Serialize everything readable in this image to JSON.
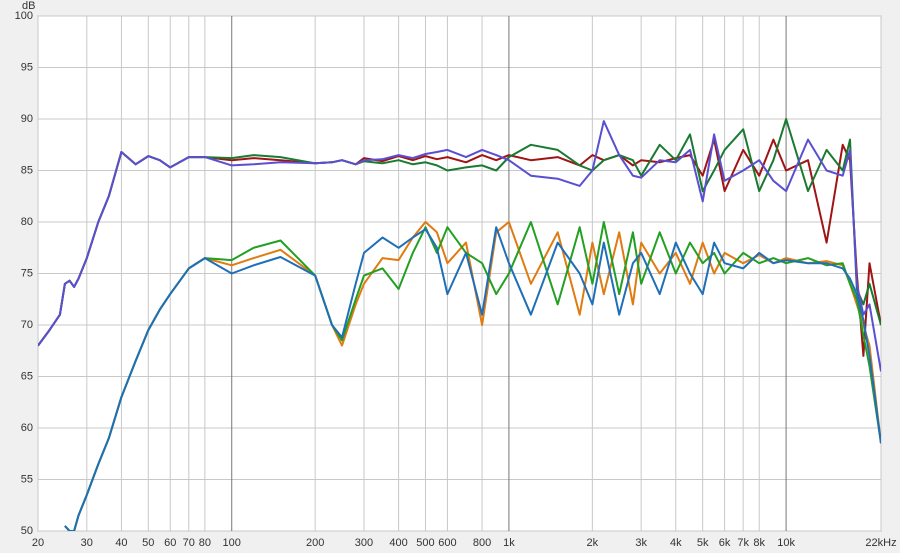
{
  "chart_data": {
    "type": "line",
    "ylabel": "dB",
    "xscale": "log",
    "grid": true,
    "x": [
      20,
      22,
      24,
      25,
      26,
      27,
      28,
      30,
      33,
      36,
      40,
      45,
      50,
      55,
      60,
      70,
      80,
      100,
      120,
      150,
      200,
      230,
      250,
      280,
      300,
      350,
      400,
      450,
      500,
      550,
      600,
      700,
      800,
      900,
      1000,
      1200,
      1500,
      1800,
      2000,
      2200,
      2500,
      2800,
      3000,
      3500,
      4000,
      4500,
      5000,
      5500,
      6000,
      7000,
      8000,
      9000,
      10000,
      12000,
      14000,
      16000,
      17000,
      18000,
      19000,
      20000,
      22000
    ],
    "series": [
      {
        "color": "#a01414",
        "values": [
          68,
          69.5,
          71,
          74,
          74.3,
          73.7,
          74.5,
          76.5,
          80,
          82.5,
          86.8,
          85.6,
          86.4,
          86,
          85.3,
          86.3,
          86.3,
          86,
          86.2,
          86,
          85.7,
          85.8,
          86,
          85.6,
          86.2,
          85.9,
          86.4,
          86,
          86.4,
          86.1,
          86.3,
          85.8,
          86.5,
          86,
          86.5,
          86,
          86.3,
          85.5,
          86.5,
          86,
          86.5,
          85.5,
          86,
          85.8,
          86.2,
          86.5,
          84.5,
          88,
          83,
          87,
          84.5,
          88,
          85,
          86,
          78,
          87.5,
          86,
          75,
          67,
          76,
          70
        ]
      },
      {
        "color": "#1a7a32",
        "values": [
          68,
          69.5,
          71,
          74,
          74.3,
          73.7,
          74.5,
          76.5,
          80,
          82.5,
          86.8,
          85.6,
          86.4,
          86,
          85.3,
          86.3,
          86.3,
          86.2,
          86.5,
          86.3,
          85.7,
          85.8,
          86,
          85.6,
          85.9,
          85.7,
          86,
          85.6,
          85.8,
          85.5,
          85,
          85.3,
          85.5,
          85,
          86.3,
          87.5,
          87,
          85.5,
          85,
          86,
          86.5,
          86,
          84.5,
          87.5,
          86,
          88.5,
          83,
          85,
          87,
          89,
          83,
          86,
          90,
          83,
          87,
          85,
          88,
          73.5,
          72,
          74,
          70
        ]
      },
      {
        "color": "#5a4fcf",
        "values": [
          68,
          69.5,
          71,
          74,
          74.3,
          73.7,
          74.5,
          76.5,
          80,
          82.5,
          86.8,
          85.6,
          86.4,
          86,
          85.3,
          86.3,
          86.3,
          85.5,
          85.6,
          85.8,
          85.7,
          85.8,
          86,
          85.6,
          86,
          86.1,
          86.5,
          86.2,
          86.6,
          86.8,
          87,
          86.3,
          87,
          86.5,
          86,
          84.5,
          84.2,
          83.5,
          85,
          89.8,
          86.5,
          84.5,
          84.3,
          86,
          85.8,
          87,
          82,
          88.5,
          84,
          85,
          86,
          84,
          83,
          88,
          85,
          84.5,
          87,
          74,
          71,
          72,
          65.5
        ]
      },
      {
        "color": "#e07b12",
        "values": [
          null,
          null,
          null,
          50.5,
          50,
          50,
          51.5,
          53.5,
          56.5,
          59,
          63,
          66.5,
          69.5,
          71.5,
          73,
          75.5,
          76.5,
          75.8,
          76.5,
          77.3,
          74.8,
          70,
          68,
          72,
          74,
          76.5,
          76.3,
          78.5,
          80,
          79,
          76,
          78,
          70,
          79,
          80,
          74,
          79,
          71,
          78,
          73,
          79,
          72,
          78,
          75,
          77,
          74,
          78,
          75,
          77,
          76,
          76.8,
          76,
          76.5,
          76,
          76.2,
          75.8,
          74,
          72,
          70,
          68,
          58.5
        ]
      },
      {
        "color": "#22a022",
        "values": [
          null,
          null,
          null,
          50.5,
          50,
          50,
          51.5,
          53.5,
          56.5,
          59,
          63,
          66.5,
          69.5,
          71.5,
          73,
          75.5,
          76.5,
          76.3,
          77.5,
          78.2,
          74.8,
          70,
          68.5,
          72.5,
          74.8,
          75.5,
          73.5,
          77,
          79.5,
          77,
          79.5,
          77,
          76,
          73,
          75,
          80,
          72,
          79.5,
          74,
          80,
          73,
          79,
          74,
          79,
          75,
          78,
          76,
          77,
          75,
          77,
          76,
          76.5,
          76,
          76.5,
          75.8,
          76,
          74,
          72.5,
          69,
          66,
          58.5
        ]
      },
      {
        "color": "#1f6fb8",
        "values": [
          null,
          null,
          null,
          50.5,
          50,
          50,
          51.5,
          53.5,
          56.5,
          59,
          63,
          66.5,
          69.5,
          71.5,
          73,
          75.5,
          76.5,
          75,
          75.8,
          76.6,
          74.8,
          70,
          68.8,
          74,
          77,
          78.5,
          77.5,
          78.5,
          79.3,
          77.5,
          73,
          77,
          71,
          79.5,
          76,
          71,
          78,
          75,
          72,
          78,
          71,
          76,
          77,
          73,
          78,
          75,
          73,
          78,
          76,
          75.5,
          77,
          76,
          76.3,
          76,
          76,
          75.5,
          74.5,
          73,
          70.5,
          67,
          58.5
        ]
      }
    ],
    "xlim": [
      20,
      22000
    ],
    "ylim": [
      50,
      100
    ],
    "xticks": [
      20,
      30,
      40,
      50,
      60,
      70,
      80,
      100,
      200,
      300,
      400,
      500,
      600,
      800,
      {
        "value": 1000,
        "label": "1k"
      },
      {
        "value": 2000,
        "label": "2k"
      },
      {
        "value": 3000,
        "label": "3k"
      },
      {
        "value": 4000,
        "label": "4k"
      },
      {
        "value": 5000,
        "label": "5k"
      },
      {
        "value": 6000,
        "label": "6k"
      },
      {
        "value": 7000,
        "label": "7k"
      },
      {
        "value": 8000,
        "label": "8k"
      },
      {
        "value": 10000,
        "label": "10k"
      },
      {
        "value": 22000,
        "label": "22kHz"
      }
    ],
    "yticks": [
      50,
      55,
      60,
      65,
      70,
      75,
      80,
      85,
      90,
      95,
      100
    ]
  }
}
